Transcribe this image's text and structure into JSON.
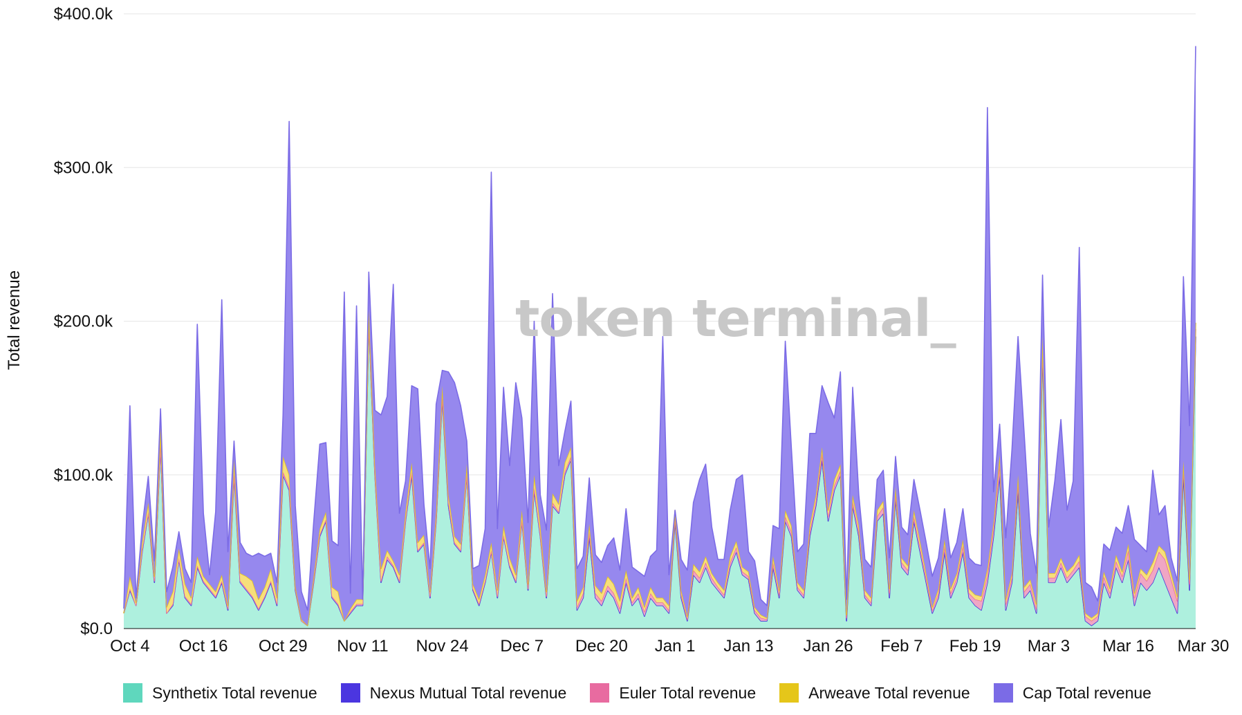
{
  "chart_data": {
    "type": "area",
    "stacked": true,
    "title": "",
    "watermark": "token terminal_",
    "xlabel": "",
    "ylabel": "Total revenue",
    "ylim": [
      0,
      400000
    ],
    "yticks": [
      {
        "value": 0,
        "label": "$0.0"
      },
      {
        "value": 100000,
        "label": "$100.0k"
      },
      {
        "value": 200000,
        "label": "$200.0k"
      },
      {
        "value": 300000,
        "label": "$300.0k"
      },
      {
        "value": 400000,
        "label": "$400.0k"
      }
    ],
    "xticks": [
      {
        "index": 1,
        "label": "Oct 4"
      },
      {
        "index": 13,
        "label": "Oct 16"
      },
      {
        "index": 26,
        "label": "Oct 29"
      },
      {
        "index": 39,
        "label": "Nov 11"
      },
      {
        "index": 52,
        "label": "Nov 24"
      },
      {
        "index": 65,
        "label": "Dec 7"
      },
      {
        "index": 78,
        "label": "Dec 20"
      },
      {
        "index": 90,
        "label": "Jan 1"
      },
      {
        "index": 102,
        "label": "Jan 13"
      },
      {
        "index": 115,
        "label": "Jan 26"
      },
      {
        "index": 127,
        "label": "Feb 7"
      },
      {
        "index": 139,
        "label": "Feb 19"
      },
      {
        "index": 151,
        "label": "Mar 3"
      },
      {
        "index": 164,
        "label": "Mar 16"
      },
      {
        "index": 178,
        "label": "Mar 30"
      }
    ],
    "legend_position": "bottom",
    "series": [
      {
        "name": "Synthetix Total revenue",
        "color": "#5fd7bd",
        "fill": "#aef0de",
        "values": [
          10,
          25,
          15,
          50,
          75,
          30,
          120,
          10,
          15,
          45,
          20,
          15,
          40,
          30,
          25,
          20,
          30,
          12,
          100,
          30,
          25,
          20,
          12,
          20,
          30,
          15,
          100,
          90,
          25,
          5,
          2,
          30,
          60,
          70,
          20,
          15,
          5,
          10,
          15,
          15,
          200,
          100,
          30,
          45,
          40,
          30,
          70,
          100,
          50,
          55,
          20,
          70,
          150,
          80,
          55,
          50,
          100,
          25,
          15,
          30,
          50,
          20,
          60,
          40,
          30,
          70,
          25,
          90,
          60,
          20,
          80,
          75,
          100,
          110,
          12,
          20,
          60,
          20,
          15,
          25,
          20,
          10,
          30,
          15,
          20,
          8,
          20,
          15,
          15,
          10,
          70,
          20,
          5,
          35,
          30,
          40,
          30,
          25,
          20,
          40,
          50,
          35,
          32,
          10,
          5,
          5,
          40,
          20,
          70,
          60,
          25,
          20,
          60,
          80,
          110,
          70,
          90,
          100,
          5,
          80,
          60,
          20,
          15,
          70,
          75,
          20,
          85,
          40,
          35,
          70,
          50,
          30,
          10,
          20,
          50,
          20,
          30,
          50,
          20,
          15,
          12,
          30,
          60,
          100,
          12,
          30,
          90,
          20,
          25,
          10,
          180,
          30,
          30,
          40,
          30,
          35,
          40,
          5,
          2,
          5,
          30,
          20,
          40,
          30,
          45,
          15,
          30,
          25,
          30,
          40,
          30,
          20,
          10,
          100,
          25,
          190
        ]
      },
      {
        "name": "Nexus Mutual Total revenue",
        "color": "#4b36e0",
        "fill": "#4b36e0",
        "values": [
          0,
          0,
          0,
          0,
          0,
          0,
          0,
          0,
          0,
          0,
          0,
          0,
          0,
          0,
          0,
          0,
          0,
          0,
          0,
          0,
          0,
          0,
          0,
          0,
          0,
          0,
          0,
          0,
          0,
          0,
          0,
          0,
          0,
          0,
          0,
          0,
          0,
          0,
          0,
          0,
          0,
          0,
          0,
          0,
          0,
          0,
          0,
          0,
          0,
          0,
          0,
          0,
          0,
          0,
          0,
          0,
          0,
          0,
          0,
          0,
          0,
          0,
          0,
          0,
          0,
          0,
          0,
          0,
          0,
          0,
          0,
          0,
          0,
          0,
          0,
          0,
          0,
          0,
          0,
          0,
          0,
          0,
          0,
          0,
          0,
          0,
          0,
          0,
          0,
          0,
          0,
          0,
          0,
          0,
          0,
          0,
          0,
          0,
          0,
          0,
          0,
          0,
          0,
          0,
          0,
          0,
          0,
          0,
          0,
          0,
          0,
          0,
          0,
          0,
          0,
          0,
          0,
          0,
          0,
          0,
          0,
          0,
          0,
          0,
          0,
          0,
          0,
          0,
          0,
          0,
          0,
          0,
          0,
          0,
          0,
          0,
          0,
          0,
          0,
          0,
          0,
          0,
          0,
          0,
          0,
          0,
          0,
          0,
          0,
          0,
          0,
          0,
          0,
          0,
          0,
          0,
          0,
          0,
          0,
          0,
          0,
          0,
          0,
          0,
          0,
          0,
          0,
          0,
          0,
          0,
          0,
          0,
          0,
          0,
          0,
          0,
          0,
          0
        ]
      },
      {
        "name": "Euler Total revenue",
        "color": "#e86ba0",
        "fill": "#f0a6c4",
        "values": [
          0,
          1,
          0,
          1,
          1,
          1,
          1,
          0,
          1,
          1,
          1,
          1,
          1,
          1,
          1,
          1,
          1,
          1,
          2,
          1,
          1,
          1,
          1,
          1,
          1,
          1,
          2,
          2,
          1,
          0,
          0,
          1,
          1,
          1,
          1,
          1,
          0,
          1,
          1,
          1,
          1,
          1,
          1,
          2,
          1,
          1,
          1,
          2,
          1,
          1,
          1,
          1,
          2,
          2,
          1,
          1,
          1,
          1,
          1,
          1,
          1,
          1,
          1,
          1,
          1,
          1,
          1,
          2,
          1,
          1,
          2,
          1,
          2,
          2,
          2,
          3,
          3,
          3,
          3,
          3,
          3,
          3,
          3,
          2,
          3,
          3,
          3,
          2,
          2,
          2,
          3,
          2,
          1,
          3,
          3,
          3,
          3,
          2,
          2,
          3,
          3,
          2,
          2,
          2,
          2,
          1,
          3,
          2,
          3,
          3,
          2,
          2,
          3,
          3,
          4,
          3,
          3,
          3,
          2,
          3,
          3,
          2,
          2,
          3,
          4,
          3,
          3,
          3,
          3,
          3,
          3,
          3,
          2,
          3,
          4,
          3,
          3,
          4,
          3,
          4,
          6,
          5,
          5,
          8,
          4,
          3,
          6,
          4,
          4,
          3,
          5,
          3,
          3,
          3,
          3,
          3,
          4,
          3,
          3,
          3,
          4,
          3,
          4,
          4,
          6,
          5,
          6,
          6,
          8,
          10,
          15,
          12,
          8,
          5,
          4,
          5
        ]
      },
      {
        "name": "Arweave Total revenue",
        "color": "#e5c61a",
        "fill": "#f7df7a",
        "values": [
          0,
          8,
          2,
          5,
          6,
          3,
          10,
          4,
          8,
          6,
          8,
          4,
          6,
          3,
          3,
          3,
          4,
          2,
          8,
          5,
          8,
          10,
          6,
          6,
          8,
          4,
          10,
          8,
          2,
          1,
          0,
          3,
          4,
          5,
          6,
          8,
          0,
          2,
          3,
          3,
          6,
          6,
          8,
          4,
          3,
          4,
          5,
          6,
          5,
          5,
          3,
          5,
          6,
          5,
          4,
          4,
          6,
          3,
          3,
          4,
          5,
          4,
          6,
          5,
          4,
          6,
          3,
          8,
          6,
          3,
          6,
          5,
          6,
          6,
          4,
          4,
          5,
          5,
          5,
          6,
          6,
          5,
          5,
          3,
          4,
          3,
          4,
          3,
          3,
          3,
          4,
          3,
          2,
          4,
          4,
          4,
          3,
          3,
          3,
          4,
          4,
          3,
          3,
          2,
          2,
          1,
          4,
          3,
          4,
          4,
          3,
          3,
          4,
          4,
          4,
          4,
          4,
          4,
          2,
          4,
          4,
          3,
          3,
          4,
          4,
          3,
          4,
          3,
          3,
          4,
          4,
          3,
          2,
          3,
          4,
          3,
          3,
          4,
          3,
          3,
          3,
          4,
          4,
          5,
          3,
          3,
          4,
          3,
          3,
          3,
          5,
          3,
          3,
          3,
          4,
          3,
          4,
          2,
          2,
          2,
          3,
          3,
          4,
          3,
          4,
          3,
          3,
          4,
          5,
          4,
          5,
          4,
          3,
          4,
          3,
          4
        ]
      },
      {
        "name": "Cap Total revenue",
        "color": "#7b6be6",
        "fill": "#9688ee",
        "values": [
          3,
          111,
          3,
          10,
          17,
          10,
          12,
          10,
          16,
          11,
          10,
          10,
          151,
          41,
          6,
          52,
          179,
          35,
          12,
          20,
          15,
          16,
          30,
          20,
          10,
          10,
          27,
          230,
          52,
          18,
          10,
          35,
          55,
          45,
          30,
          30,
          214,
          10,
          191,
          0,
          25,
          35,
          100,
          100,
          180,
          40,
          20,
          50,
          100,
          20,
          15,
          70,
          10,
          80,
          100,
          90,
          15,
          10,
          22,
          30,
          241,
          40,
          90,
          60,
          125,
          60,
          40,
          100,
          20,
          40,
          130,
          25,
          20,
          30,
          21,
          20,
          30,
          20,
          20,
          20,
          30,
          20,
          40,
          20,
          10,
          20,
          20,
          31,
          170,
          20,
          0,
          20,
          30,
          40,
          60,
          60,
          30,
          15,
          20,
          30,
          40,
          60,
          13,
          30,
          10,
          8,
          20,
          40,
          110,
          50,
          20,
          30,
          60,
          40,
          40,
          70,
          40,
          60,
          10,
          70,
          20,
          20,
          20,
          20,
          20,
          20,
          20,
          20,
          20,
          20,
          20,
          20,
          20,
          20,
          20,
          20,
          20,
          20,
          20,
          20,
          20,
          300,
          20,
          20,
          40,
          80,
          90,
          100,
          30,
          20,
          40,
          30,
          60,
          90,
          40,
          55,
          200,
          20,
          20,
          8,
          18,
          25,
          18,
          25,
          25,
          35,
          15,
          15,
          60,
          20,
          30,
          10,
          10,
          120,
          100,
          180
        ]
      }
    ]
  }
}
